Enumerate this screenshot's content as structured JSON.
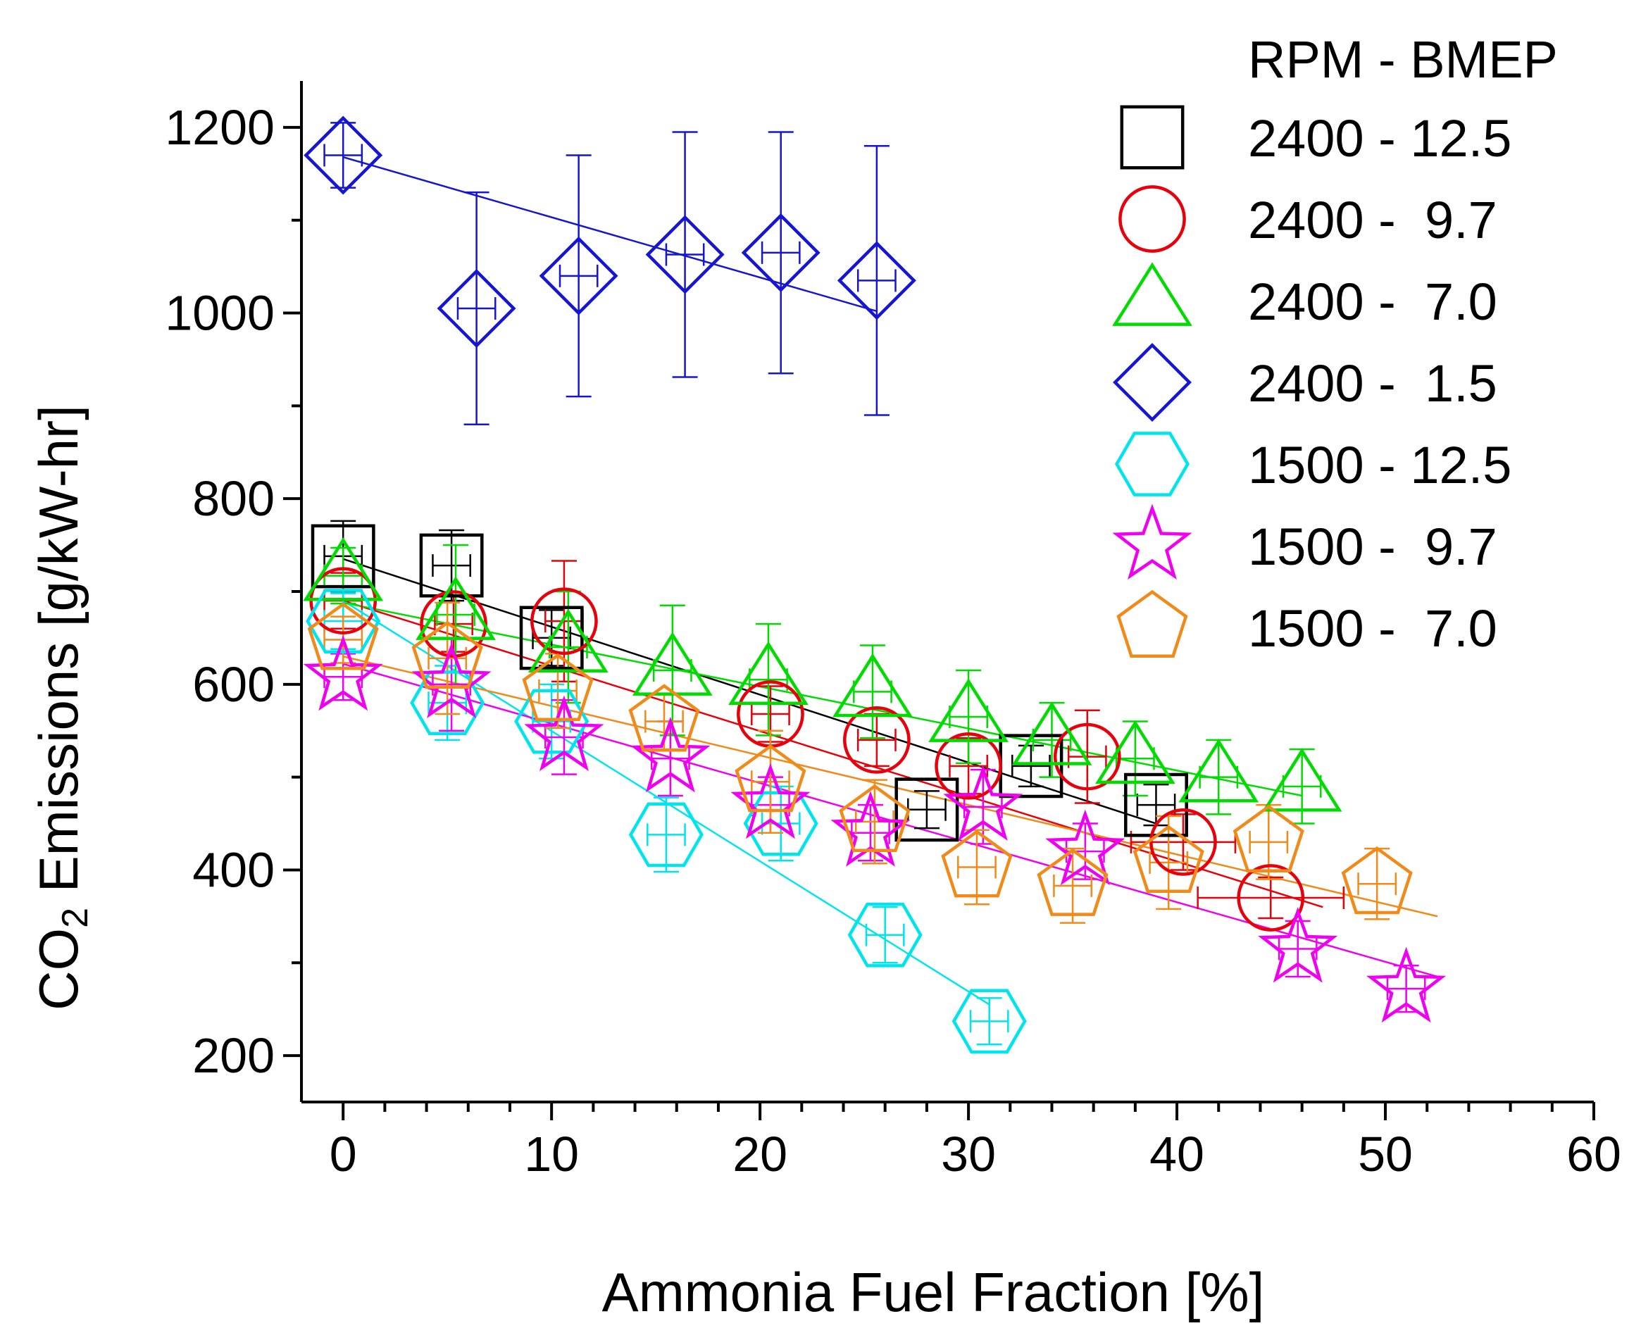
{
  "chart_data": {
    "type": "scatter",
    "title": "",
    "xlabel": "Ammonia Fuel Fraction [%]",
    "ylabel": {
      "prefix": "CO",
      "subscript": "2",
      "suffix": " Emissions [g/kW-hr]"
    },
    "xlim": [
      -2,
      60
    ],
    "ylim": [
      150,
      1250
    ],
    "xticks": [
      0,
      10,
      20,
      30,
      40,
      50,
      60
    ],
    "yticks": [
      200,
      400,
      600,
      800,
      1000,
      1200
    ],
    "legend": {
      "title": "RPM - BMEP",
      "position": "top-right"
    },
    "series": [
      {
        "name": "2400 - 12.5",
        "marker": "square",
        "color": "#000000",
        "x": [
          0,
          5.2,
          10,
          28,
          33,
          39
        ],
        "y": [
          738,
          728,
          650,
          465,
          512,
          470
        ],
        "yerr": [
          38,
          38,
          30,
          20,
          22,
          22
        ],
        "fit": [
          [
            0,
            735
          ],
          [
            39,
            450
          ]
        ]
      },
      {
        "name": "2400 -  9.7",
        "marker": "circle",
        "color": "#e8000a",
        "x": [
          0,
          5.3,
          10.6,
          20.5,
          25.6,
          30,
          35.7,
          40.3,
          44.5
        ],
        "y": [
          690,
          665,
          668,
          568,
          540,
          512,
          522,
          430,
          370
        ],
        "yerr": [
          30,
          30,
          65,
          30,
          28,
          30,
          50,
          30,
          22
        ],
        "xerr": [
          0,
          0,
          0,
          0,
          0,
          0,
          0,
          2.5,
          3.5
        ],
        "fit": [
          [
            0,
            690
          ],
          [
            47,
            360
          ]
        ]
      },
      {
        "name": "2400 -  7.0",
        "marker": "triangle",
        "color": "#00dc00",
        "x": [
          0,
          5.4,
          10.8,
          15.8,
          20.4,
          25.4,
          30,
          34,
          38,
          42,
          46
        ],
        "y": [
          717,
          675,
          640,
          615,
          605,
          592,
          565,
          540,
          520,
          500,
          490
        ],
        "yerr": [
          30,
          75,
          60,
          70,
          60,
          50,
          50,
          40,
          40,
          40,
          40
        ],
        "fit": [
          [
            0,
            688
          ],
          [
            46,
            480
          ]
        ]
      },
      {
        "name": "2400 -  1.5",
        "marker": "diamond",
        "color": "#1515d2",
        "x": [
          0,
          6.4,
          11.3,
          16.4,
          21,
          25.6
        ],
        "y": [
          1170,
          1005,
          1040,
          1063,
          1065,
          1035
        ],
        "yerr": [
          35,
          125,
          130,
          132,
          130,
          145
        ],
        "fit": [
          [
            0,
            1168
          ],
          [
            25.6,
            1002
          ]
        ]
      },
      {
        "name": "1500 - 12.5",
        "marker": "hexagon",
        "color": "#00e4ee",
        "x": [
          0,
          5,
          10,
          15.5,
          21,
          26,
          31
        ],
        "y": [
          668,
          580,
          560,
          438,
          450,
          330,
          237
        ],
        "yerr": [
          30,
          40,
          40,
          40,
          40,
          30,
          25
        ],
        "fit": [
          [
            0,
            690
          ],
          [
            31,
            255
          ]
        ]
      },
      {
        "name": "1500 -  9.7",
        "marker": "star",
        "color": "#f000f0",
        "x": [
          0,
          5.2,
          10.6,
          15.7,
          20.5,
          25.3,
          30.7,
          35.6,
          45.8,
          51
        ],
        "y": [
          608,
          600,
          543,
          520,
          470,
          440,
          468,
          420,
          315,
          272
        ],
        "yerr": [
          25,
          50,
          40,
          40,
          30,
          30,
          40,
          30,
          30,
          25
        ],
        "fit": [
          [
            0,
            622
          ],
          [
            52.5,
            285
          ]
        ]
      },
      {
        "name": "1500 -  7.0",
        "marker": "pentagon",
        "color": "#f08a18",
        "x": [
          0,
          5,
          10.3,
          15.4,
          20.5,
          25.5,
          30.4,
          35,
          39.6,
          44.4,
          49.6
        ],
        "y": [
          648,
          628,
          593,
          560,
          495,
          452,
          403,
          383,
          408,
          430,
          385
        ],
        "yerr": [
          25,
          60,
          40,
          30,
          55,
          45,
          40,
          40,
          50,
          40,
          38
        ],
        "fit": [
          [
            0,
            630
          ],
          [
            52.5,
            350
          ]
        ]
      }
    ]
  }
}
